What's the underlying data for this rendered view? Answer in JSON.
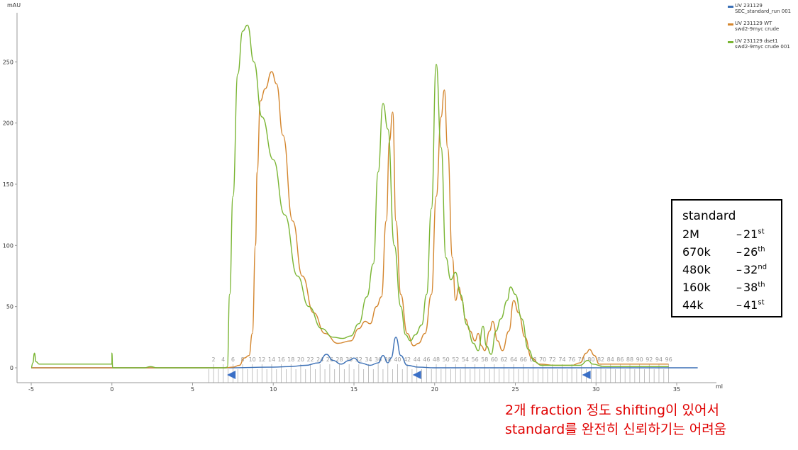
{
  "chart_data": {
    "type": "line",
    "ylabel": "mAU",
    "xlabel": "ml",
    "xlim": [
      -5.5,
      36.5
    ],
    "ylim": [
      -12,
      282
    ],
    "x_ticks": [
      -5,
      0,
      5,
      10,
      15,
      20,
      25,
      30,
      35
    ],
    "y_ticks": [
      0,
      50,
      100,
      150,
      200,
      250
    ],
    "grid": false,
    "legend_position": "top-right",
    "series": [
      {
        "name": "UV 231129 SEC_standard_run 001",
        "legend_lines": [
          "UV 231129",
          "SEC_standard_run 001"
        ],
        "color": "#3a6fb5",
        "points": [
          [
            -5,
            0
          ],
          [
            5,
            0
          ],
          [
            7,
            0
          ],
          [
            10,
            0.5
          ],
          [
            11,
            1
          ],
          [
            12,
            2
          ],
          [
            12.8,
            4
          ],
          [
            13.3,
            11
          ],
          [
            13.7,
            6
          ],
          [
            14.2,
            3
          ],
          [
            14.7,
            6
          ],
          [
            15,
            8
          ],
          [
            15.4,
            4
          ],
          [
            16,
            2
          ],
          [
            16.5,
            4
          ],
          [
            16.8,
            10
          ],
          [
            17.1,
            4
          ],
          [
            17.3,
            8
          ],
          [
            17.6,
            25
          ],
          [
            17.9,
            10
          ],
          [
            18.3,
            2
          ],
          [
            19,
            0.5
          ],
          [
            20,
            0
          ],
          [
            25,
            0
          ],
          [
            30,
            0
          ],
          [
            33,
            0
          ],
          [
            36.3,
            0
          ]
        ]
      },
      {
        "name": "UV 231129 WT swd2-9myc crude",
        "legend_lines": [
          "UV 231129 WT",
          "swd2-9myc crude"
        ],
        "color": "#d4862e",
        "points": [
          [
            -5,
            0
          ],
          [
            0,
            0
          ],
          [
            7,
            0
          ],
          [
            7.5,
            0.5
          ],
          [
            7.9,
            2
          ],
          [
            8.2,
            8
          ],
          [
            8.5,
            10
          ],
          [
            8.7,
            28
          ],
          [
            8.9,
            100
          ],
          [
            9.0,
            160
          ],
          [
            9.2,
            218
          ],
          [
            9.5,
            228
          ],
          [
            9.9,
            242
          ],
          [
            10.2,
            232
          ],
          [
            10.6,
            190
          ],
          [
            11.2,
            120
          ],
          [
            11.8,
            75
          ],
          [
            12.5,
            45
          ],
          [
            13.2,
            28
          ],
          [
            14,
            20
          ],
          [
            14.8,
            22
          ],
          [
            15.3,
            32
          ],
          [
            15.7,
            38
          ],
          [
            16,
            36
          ],
          [
            16.4,
            50
          ],
          [
            16.7,
            58
          ],
          [
            17.0,
            120
          ],
          [
            17.2,
            185
          ],
          [
            17.4,
            209
          ],
          [
            17.6,
            120
          ],
          [
            17.9,
            60
          ],
          [
            18.3,
            28
          ],
          [
            18.7,
            18
          ],
          [
            19,
            20
          ],
          [
            19.4,
            28
          ],
          [
            19.8,
            60
          ],
          [
            20.1,
            140
          ],
          [
            20.4,
            205
          ],
          [
            20.6,
            227
          ],
          [
            20.8,
            180
          ],
          [
            21.1,
            90
          ],
          [
            21.3,
            55
          ],
          [
            21.5,
            66
          ],
          [
            21.7,
            55
          ],
          [
            21.9,
            40
          ],
          [
            22.2,
            30
          ],
          [
            22.5,
            22
          ],
          [
            22.7,
            28
          ],
          [
            22.9,
            18
          ],
          [
            23.1,
            14
          ],
          [
            23.4,
            30
          ],
          [
            23.6,
            38
          ],
          [
            23.9,
            22
          ],
          [
            24.2,
            14
          ],
          [
            24.6,
            30
          ],
          [
            24.9,
            55
          ],
          [
            25.2,
            45
          ],
          [
            25.6,
            25
          ],
          [
            26,
            8
          ],
          [
            26.5,
            3
          ],
          [
            27.5,
            2
          ],
          [
            28.5,
            2
          ],
          [
            29,
            4
          ],
          [
            29.4,
            12
          ],
          [
            29.6,
            15
          ],
          [
            29.9,
            10
          ],
          [
            30.2,
            3
          ],
          [
            31,
            3
          ],
          [
            33,
            3
          ],
          [
            34.5,
            3
          ]
        ]
      },
      {
        "name": "UV 231129 dset1 swd2-9myc crude 001",
        "legend_lines": [
          "UV 231129 dset1",
          "swd2-9myc crude 001"
        ],
        "color": "#7ab533",
        "points": [
          [
            -5,
            0
          ],
          [
            -4.9,
            4
          ],
          [
            -4.8,
            12
          ],
          [
            -4.7,
            5
          ],
          [
            -4.5,
            3
          ],
          [
            0,
            3
          ],
          [
            0,
            12
          ],
          [
            0.05,
            0
          ],
          [
            2,
            0
          ],
          [
            2.4,
            1
          ],
          [
            2.8,
            0
          ],
          [
            7,
            0
          ],
          [
            7.15,
            0.5
          ],
          [
            7.3,
            60
          ],
          [
            7.5,
            140
          ],
          [
            7.8,
            240
          ],
          [
            8.1,
            275
          ],
          [
            8.4,
            280
          ],
          [
            8.8,
            250
          ],
          [
            9.3,
            205
          ],
          [
            10,
            170
          ],
          [
            10.7,
            125
          ],
          [
            11.5,
            75
          ],
          [
            12.2,
            50
          ],
          [
            13,
            32
          ],
          [
            13.7,
            25
          ],
          [
            14.3,
            24
          ],
          [
            14.8,
            26
          ],
          [
            15.3,
            36
          ],
          [
            15.8,
            58
          ],
          [
            16.2,
            85
          ],
          [
            16.5,
            160
          ],
          [
            16.8,
            216
          ],
          [
            17.1,
            195
          ],
          [
            17.5,
            100
          ],
          [
            17.9,
            50
          ],
          [
            18.2,
            27
          ],
          [
            18.5,
            22
          ],
          [
            18.8,
            27
          ],
          [
            19.2,
            35
          ],
          [
            19.5,
            60
          ],
          [
            19.8,
            130
          ],
          [
            20.1,
            248
          ],
          [
            20.4,
            180
          ],
          [
            20.7,
            90
          ],
          [
            21.0,
            72
          ],
          [
            21.3,
            78
          ],
          [
            21.6,
            60
          ],
          [
            22,
            35
          ],
          [
            22.4,
            20
          ],
          [
            22.7,
            14
          ],
          [
            23.0,
            34
          ],
          [
            23.2,
            18
          ],
          [
            23.5,
            11
          ],
          [
            23.8,
            30
          ],
          [
            24.1,
            40
          ],
          [
            24.5,
            55
          ],
          [
            24.7,
            66
          ],
          [
            25.0,
            60
          ],
          [
            25.4,
            40
          ],
          [
            25.8,
            15
          ],
          [
            26.2,
            5
          ],
          [
            26.6,
            2
          ],
          [
            28,
            2
          ],
          [
            29,
            2
          ],
          [
            29.5,
            6
          ],
          [
            29.8,
            3
          ],
          [
            30.5,
            1
          ],
          [
            31.5,
            1
          ],
          [
            33,
            1
          ],
          [
            34.5,
            1
          ]
        ]
      }
    ],
    "fractions": {
      "labels": [
        "2",
        "4",
        "6",
        "8",
        "10",
        "12",
        "14",
        "16",
        "18",
        "20",
        "22",
        "24",
        "26",
        "28",
        "30",
        "32",
        "34",
        "36",
        "38",
        "40",
        "42",
        "44",
        "46",
        "48",
        "50",
        "52",
        "54",
        "56",
        "58",
        "60",
        "62",
        "64",
        "66",
        "68",
        "70",
        "72",
        "74",
        "76",
        "78",
        "80",
        "82",
        "84",
        "86",
        "88",
        "90",
        "92",
        "94",
        "96"
      ],
      "x_start": 6.0,
      "x_end": 34.5,
      "count": 96,
      "arrows_x": [
        7.4,
        18.9,
        29.4
      ]
    }
  },
  "standard_box": {
    "title": "standard",
    "rows": [
      {
        "mw": "2M",
        "fraction": "21",
        "suffix": "st"
      },
      {
        "mw": "670k",
        "fraction": "26",
        "suffix": "th"
      },
      {
        "mw": "480k",
        "fraction": "32",
        "suffix": "nd"
      },
      {
        "mw": "160k",
        "fraction": "38",
        "suffix": "th"
      },
      {
        "mw": "44k",
        "fraction": "41",
        "suffix": "st"
      }
    ],
    "dash": "–"
  },
  "note": {
    "line1": "2개 fraction 정도 shifting이 있어서",
    "line2": "standard를 완전히 신뢰하기는 어려움",
    "color": "#e00000"
  }
}
